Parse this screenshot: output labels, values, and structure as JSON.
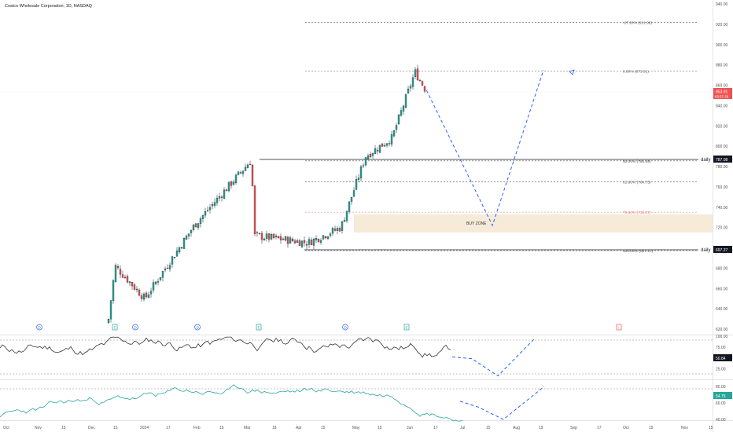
{
  "header": {
    "title": "Costco Wholesale Corporation, 1D, NASDAQ"
  },
  "colors": {
    "up": "#26a69a",
    "down": "#ef5350",
    "rsi": "#333333",
    "osc": "#26a69a",
    "projection": "#2962ff",
    "buyzone": "#f6ead8",
    "fib_red": "#e57373"
  },
  "price_axis": {
    "ticks": [
      "940.00",
      "920.00",
      "900.00",
      "880.00",
      "860.00",
      "840.00",
      "820.00",
      "800.00",
      "780.00",
      "760.00",
      "740.00",
      "720.00",
      "700.00",
      "680.00",
      "660.00",
      "640.00",
      "620.00"
    ]
  },
  "price_badges": {
    "current": "853.91",
    "countdown": "05:57:29",
    "daily_upper": "787.08",
    "daily_lower": "697.27"
  },
  "lines": {
    "daily_upper_label": "daily",
    "daily_lower_label": "daily"
  },
  "fib": [
    {
      "label": "-27.20% (921.96)",
      "price": 921.96
    },
    {
      "label": "0.00% (873.91)",
      "price": 873.91
    },
    {
      "label": "50.00% (785.59)",
      "price": 785.59
    },
    {
      "label": "61.80% (764.75)",
      "price": 764.75
    },
    {
      "label": "78.60% (735.07)",
      "price": 735.07
    },
    {
      "label": "100.00% (697.27)",
      "price": 697.27
    }
  ],
  "buy_zone": {
    "label": "BUY ZONE",
    "top": 733,
    "bottom": 715
  },
  "rsi_axis": {
    "ticks": [
      "100.00",
      "75.00",
      "50.00",
      "25.00"
    ],
    "value": "50.84"
  },
  "osc_axis": {
    "ticks": [
      "80.00",
      "60.00",
      "40.00"
    ],
    "value": "54.75"
  },
  "time_axis": {
    "labels": [
      "Oct",
      "Nov",
      "15",
      "Dec",
      "15",
      "2024",
      "17",
      "Feb",
      "15",
      "Mar",
      "18",
      "Apr",
      "15",
      "May",
      "15",
      "Jun",
      "17",
      "Jul",
      "15",
      "Aug",
      "19",
      "Sep",
      "17",
      "Oct",
      "15",
      "Nov",
      "15"
    ]
  },
  "event_markers": [
    "D",
    "E",
    "D",
    "D",
    "E",
    "D",
    "E",
    "!"
  ],
  "chart_data": {
    "type": "candlestick",
    "title": "Costco Wholesale Corporation, 1D, NASDAQ",
    "ylim": [
      615,
      940
    ],
    "y_scale": "linear",
    "annotations": [
      "BUY ZONE",
      "daily",
      "daily"
    ],
    "key_prices": {
      "last": 853.91,
      "daily_upper": 787.08,
      "daily_lower": 697.27,
      "recent_high": 873.91
    },
    "path_waypoints": [
      {
        "date": "2023-12-11",
        "close": 630
      },
      {
        "date": "2023-12-15",
        "close": 682
      },
      {
        "date": "2024-01-02",
        "close": 650
      },
      {
        "date": "2024-02-01",
        "close": 722
      },
      {
        "date": "2024-03-07",
        "close": 787
      },
      {
        "date": "2024-03-08",
        "close": 712
      },
      {
        "date": "2024-04-10",
        "close": 705
      },
      {
        "date": "2024-04-30",
        "close": 720
      },
      {
        "date": "2024-05-15",
        "close": 790
      },
      {
        "date": "2024-05-31",
        "close": 808
      },
      {
        "date": "2024-06-14",
        "close": 873
      },
      {
        "date": "2024-06-21",
        "close": 853.91
      }
    ],
    "projection_path": [
      {
        "date": "2024-06-21",
        "price": 855
      },
      {
        "date": "2024-07-31",
        "price": 722
      },
      {
        "date": "2024-08-31",
        "price": 875
      }
    ],
    "indicator_rsi": {
      "last": 50.84
    },
    "indicator_osc": {
      "last": 54.75
    }
  }
}
